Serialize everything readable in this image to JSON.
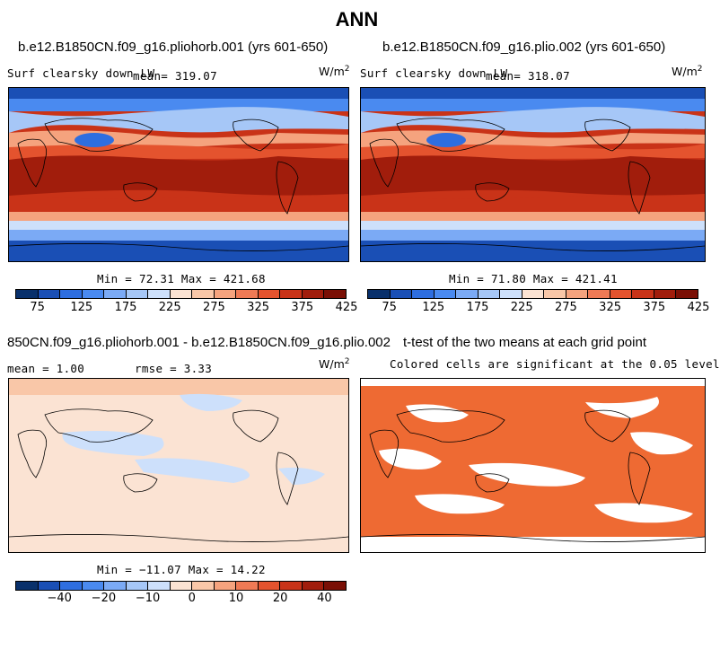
{
  "title": "ANN",
  "chart_data": [
    {
      "type": "heatmap",
      "title": "b.e12.B1850CN.f09_g16.pliohorb.001 (yrs 601-650)",
      "variable": "Surf clearsky down LW",
      "units_prefix": "W/m",
      "units_exp": "2",
      "mean_text": "mean= 319.07",
      "min": 72.31,
      "max": 421.68,
      "minmax_text": "Min =  72.31 Max = 421.68",
      "colorbar_ticks": [
        "75",
        "125",
        "175",
        "225",
        "275",
        "325",
        "375",
        "425"
      ],
      "colorbar_levels": [
        75,
        100,
        125,
        150,
        175,
        200,
        225,
        250,
        275,
        300,
        325,
        350,
        375,
        400,
        425
      ]
    },
    {
      "type": "heatmap",
      "title": "b.e12.B1850CN.f09_g16.plio.002 (yrs 601-650)",
      "variable": "Surf clearsky down LW",
      "units_prefix": "W/m",
      "units_exp": "2",
      "mean_text": "mean= 318.07",
      "min": 71.8,
      "max": 421.41,
      "minmax_text": "Min =  71.80 Max = 421.41",
      "colorbar_ticks": [
        "75",
        "125",
        "175",
        "225",
        "275",
        "325",
        "375",
        "425"
      ],
      "colorbar_levels": [
        75,
        100,
        125,
        150,
        175,
        200,
        225,
        250,
        275,
        300,
        325,
        350,
        375,
        400,
        425
      ]
    },
    {
      "type": "heatmap",
      "title": "850CN.f09_g16.pliohorb.001 - b.e12.B1850CN.f09_g16.plio.002",
      "units_prefix": "W/m",
      "units_exp": "2",
      "mean_text": "mean =   1.00",
      "rmse_text": "rmse =   3.33",
      "min": -11.07,
      "max": 14.22,
      "minmax_text": "Min = −11.07 Max =  14.22",
      "colorbar_ticks": [
        "−40",
        "−20",
        "−10",
        "0",
        "10",
        "20",
        "40"
      ],
      "colorbar_levels": [
        -50,
        -40,
        -30,
        -20,
        -15,
        -10,
        -5,
        0,
        5,
        10,
        15,
        20,
        30,
        40,
        50
      ]
    },
    {
      "type": "heatmap",
      "title": "t-test of the two means at each grid point",
      "subtitle": "Colored cells are significant at the 0.05 level"
    }
  ],
  "colors": {
    "palette": [
      "#08306b",
      "#1a4fb5",
      "#2e6ee0",
      "#4a8af0",
      "#7baaf5",
      "#a6c7f7",
      "#cde0fb",
      "#fbe3d3",
      "#f9c7a8",
      "#f5a37e",
      "#ef7a55",
      "#e4532e",
      "#c93318",
      "#a11d0c",
      "#7a0f05"
    ],
    "ttest": "#ee6a33"
  }
}
